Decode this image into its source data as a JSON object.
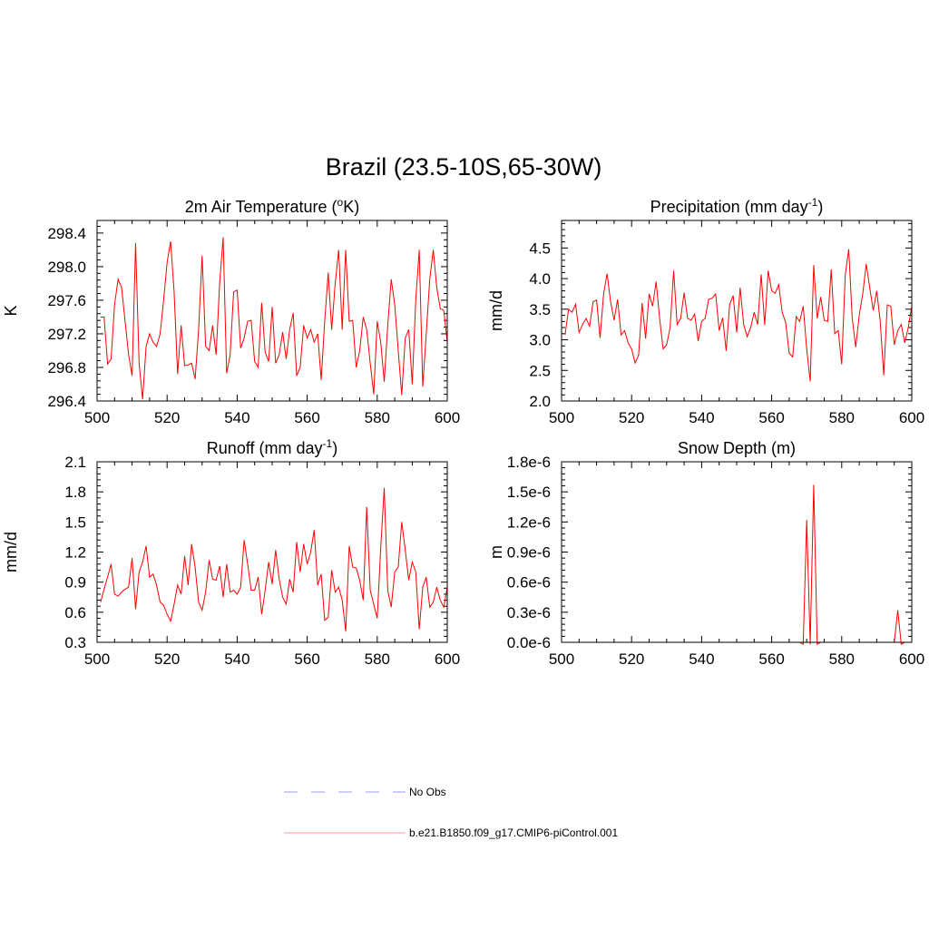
{
  "figure": {
    "title": "Brazil (23.5-10S,65-30W)"
  },
  "legend": {
    "entries": [
      {
        "label": "No Obs",
        "color": "#9999ff",
        "dash": true
      },
      {
        "label": "b.e21.B1850.f09_g17.CMIP6-piControl.001",
        "color": "#ff9999",
        "dash": false
      }
    ]
  },
  "chart_data": [
    {
      "type": "line",
      "title": "2m Air Temperature (°K)",
      "title_parts": [
        "2m Air Temperature (",
        "o",
        "K)"
      ],
      "ylabel": "K",
      "xlim": [
        500,
        600
      ],
      "ylim": [
        296.4,
        298.55
      ],
      "xticks": [
        500,
        520,
        540,
        560,
        580,
        600
      ],
      "xtick_labels": [
        "500",
        "520",
        "540",
        "560",
        "580",
        "600"
      ],
      "yticks": [
        296.4,
        296.8,
        297.2,
        297.6,
        298.0,
        298.4
      ],
      "ytick_labels": [
        "296.4",
        "296.8",
        "297.2",
        "297.6",
        "298.0",
        "298.4"
      ],
      "series": [
        {
          "color": "#ff0000",
          "x_start": 501,
          "values": [
            297.4,
            297.4,
            296.84,
            296.9,
            297.55,
            297.85,
            297.75,
            297.35,
            296.95,
            296.7,
            298.28,
            296.85,
            296.42,
            297.05,
            297.2,
            297.1,
            297.05,
            297.2,
            297.6,
            298.05,
            298.3,
            297.7,
            296.72,
            297.3,
            296.82,
            296.83,
            296.85,
            296.66,
            297.25,
            298.13,
            297.05,
            297.0,
            297.3,
            296.95,
            297.8,
            298.35,
            296.73,
            296.95,
            297.7,
            297.72,
            297.03,
            297.15,
            297.35,
            297.36,
            296.87,
            296.8,
            297.57,
            296.98,
            296.87,
            297.52,
            296.85,
            296.95,
            297.22,
            296.9,
            297.25,
            297.45,
            296.7,
            296.8,
            297.3,
            297.15,
            297.25,
            297.1,
            297.2,
            296.65,
            297.35,
            297.93,
            297.25,
            297.8,
            298.2,
            297.25,
            298.2,
            297.35,
            297.36,
            296.8,
            297.0,
            297.4,
            297.25,
            296.85,
            296.48,
            297.35,
            297.1,
            296.63,
            297.3,
            297.85,
            297.55,
            297.0,
            296.47,
            297.15,
            297.25,
            296.6,
            297.6,
            298.2,
            296.57,
            297.2,
            297.85,
            298.2,
            297.75,
            297.5,
            297.48,
            297.1
          ]
        }
      ]
    },
    {
      "type": "line",
      "title": "Precipitation (mm day-1)",
      "title_parts": [
        "Precipitation (mm day",
        "-1",
        ")"
      ],
      "ylabel": "mm/d",
      "xlim": [
        500,
        600
      ],
      "ylim": [
        2.0,
        4.95
      ],
      "xticks": [
        500,
        520,
        540,
        560,
        580,
        600
      ],
      "xtick_labels": [
        "500",
        "520",
        "540",
        "560",
        "580",
        "600"
      ],
      "yticks": [
        2.0,
        2.5,
        3.0,
        3.5,
        4.0,
        4.5
      ],
      "ytick_labels": [
        "2.0",
        "2.5",
        "3.0",
        "3.5",
        "4.0",
        "4.5"
      ],
      "series": [
        {
          "color": "#ff0000",
          "x_start": 501,
          "values": [
            3.08,
            3.5,
            3.45,
            3.58,
            3.12,
            3.25,
            3.35,
            3.22,
            3.62,
            3.65,
            3.03,
            3.75,
            4.08,
            3.62,
            3.32,
            3.66,
            3.08,
            3.15,
            2.95,
            2.85,
            2.62,
            2.75,
            3.6,
            3.02,
            3.75,
            3.55,
            3.95,
            3.35,
            2.85,
            2.92,
            3.2,
            4.13,
            3.25,
            3.35,
            3.77,
            3.35,
            3.32,
            3.42,
            2.98,
            3.3,
            3.35,
            3.66,
            3.68,
            3.75,
            3.15,
            3.36,
            2.82,
            3.58,
            3.72,
            3.12,
            3.85,
            3.25,
            3.05,
            3.2,
            3.45,
            3.25,
            4.07,
            3.24,
            4.13,
            3.8,
            3.76,
            3.9,
            3.45,
            3.28,
            2.78,
            2.72,
            3.38,
            3.3,
            3.55,
            2.85,
            2.32,
            4.22,
            3.35,
            3.7,
            3.32,
            3.3,
            4.15,
            3.1,
            3.15,
            2.6,
            4.05,
            4.48,
            3.35,
            2.88,
            3.4,
            3.75,
            4.24,
            3.85,
            3.48,
            3.8,
            3.3,
            2.42,
            3.57,
            3.55,
            2.92,
            3.15,
            3.25,
            2.95,
            3.2,
            3.55
          ]
        }
      ]
    },
    {
      "type": "line",
      "title": "Runoff (mm day-1)",
      "title_parts": [
        "Runoff (mm day",
        "-1",
        ")"
      ],
      "ylabel": "mm/d",
      "xlim": [
        500,
        600
      ],
      "ylim": [
        0.3,
        2.1
      ],
      "xticks": [
        500,
        520,
        540,
        560,
        580,
        600
      ],
      "xtick_labels": [
        "500",
        "520",
        "540",
        "560",
        "580",
        "600"
      ],
      "yticks": [
        0.3,
        0.6,
        0.9,
        1.2,
        1.5,
        1.8,
        2.1
      ],
      "ytick_labels": [
        "0.3",
        "0.6",
        "0.9",
        "1.2",
        "1.5",
        "1.8",
        "2.1"
      ],
      "series": [
        {
          "color": "#ff0000",
          "x_start": 501,
          "values": [
            0.7,
            0.83,
            0.95,
            1.08,
            0.78,
            0.76,
            0.8,
            0.83,
            0.85,
            1.14,
            0.63,
            1.0,
            1.1,
            1.26,
            0.95,
            0.98,
            0.87,
            0.7,
            0.67,
            0.58,
            0.51,
            0.68,
            0.87,
            0.78,
            1.16,
            0.87,
            1.28,
            1.05,
            0.7,
            0.62,
            0.8,
            1.12,
            0.93,
            0.92,
            1.06,
            0.75,
            1.08,
            0.8,
            0.82,
            0.78,
            0.85,
            1.32,
            1.08,
            0.82,
            0.82,
            0.95,
            0.58,
            0.82,
            1.1,
            0.88,
            1.22,
            0.93,
            0.75,
            0.68,
            0.93,
            0.8,
            1.3,
            1.0,
            1.28,
            1.08,
            1.2,
            1.42,
            0.87,
            0.98,
            0.52,
            0.55,
            1.02,
            0.8,
            0.85,
            0.72,
            0.41,
            1.26,
            1.05,
            1.04,
            0.92,
            0.72,
            1.65,
            0.82,
            0.68,
            0.54,
            1.24,
            1.84,
            0.82,
            0.65,
            1.0,
            1.05,
            1.5,
            1.22,
            0.92,
            1.1,
            1.0,
            0.43,
            0.85,
            0.95,
            0.65,
            0.7,
            0.85,
            0.72,
            0.65,
            0.85
          ]
        }
      ]
    },
    {
      "type": "line",
      "title": "Snow Depth (m)",
      "title_parts": [
        "Snow Depth (m)",
        "",
        ""
      ],
      "ylabel": "m",
      "xlim": [
        500,
        600
      ],
      "ylim": [
        0.0,
        1.8e-06
      ],
      "xticks": [
        500,
        520,
        540,
        560,
        580,
        600
      ],
      "xtick_labels": [
        "500",
        "520",
        "540",
        "560",
        "580",
        "600"
      ],
      "yticks": [
        0.0,
        3e-07,
        6e-07,
        9e-07,
        1.2e-06,
        1.5e-06,
        1.8e-06
      ],
      "ytick_labels": [
        "0.0e-6",
        "0.3e-6",
        "0.6e-6",
        "0.9e-6",
        "1.2e-6",
        "1.5e-6",
        "1.8e-6"
      ],
      "series": [
        {
          "color": "#ff0000",
          "x_start": 501,
          "values": [
            0,
            0,
            0,
            0,
            0,
            0,
            0,
            0,
            0,
            0,
            0,
            0,
            0,
            0,
            0,
            0,
            0,
            0,
            0,
            0,
            0,
            0,
            0,
            0,
            0,
            0,
            0,
            0,
            0,
            0,
            0,
            0,
            0,
            0,
            0,
            0,
            0,
            0,
            0,
            0,
            0,
            0,
            0,
            0,
            0,
            0,
            0,
            0,
            0,
            0,
            0,
            0,
            0,
            0,
            0,
            0,
            0,
            0,
            0,
            0,
            0,
            0,
            0,
            0,
            0,
            0,
            0,
            0,
            -2e-08,
            1.22e-06,
            -2e-08,
            1.57e-06,
            -2e-08,
            0,
            0,
            0,
            0,
            0,
            0,
            0,
            0,
            0,
            0,
            0,
            0,
            0,
            0,
            0,
            0,
            0,
            0,
            0,
            0,
            0,
            0,
            3.2e-07,
            -2e-08,
            0,
            0,
            0
          ]
        }
      ]
    }
  ]
}
